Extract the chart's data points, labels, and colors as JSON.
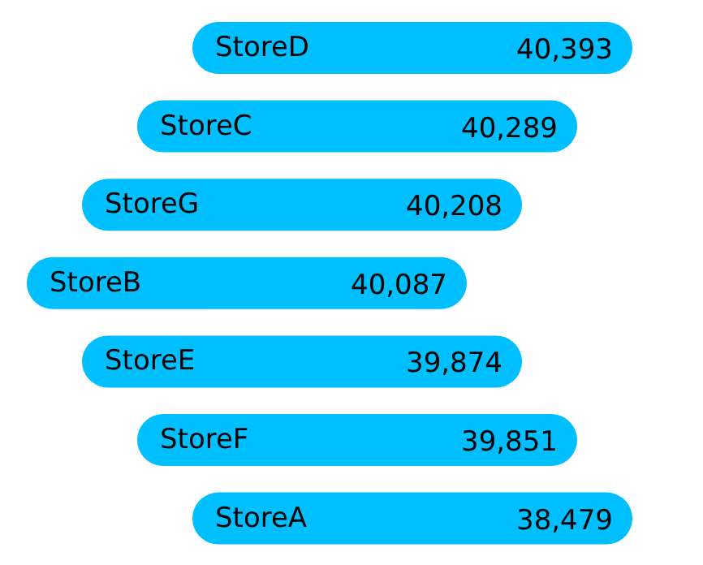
{
  "chart_data": {
    "type": "other",
    "categories": [
      "StoreD",
      "StoreC",
      "StoreG",
      "StoreB",
      "StoreE",
      "StoreF",
      "StoreA"
    ],
    "values": [
      40393,
      40289,
      40208,
      40087,
      39874,
      39851,
      38479
    ],
    "value_labels": [
      "40,393",
      "40,289",
      "40,208",
      "40,087",
      "39,874",
      "39,851",
      "38,479"
    ],
    "color": "#00bfff"
  }
}
